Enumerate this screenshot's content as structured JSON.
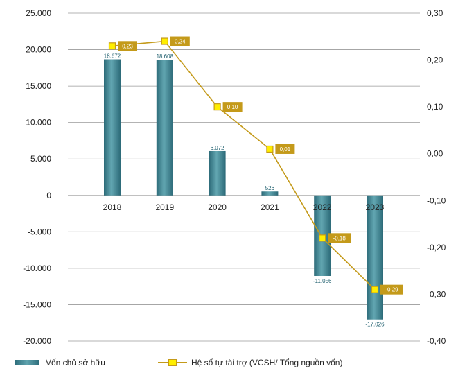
{
  "chart_data": {
    "type": "bar+line",
    "categories": [
      "2018",
      "2019",
      "2020",
      "2021",
      "2022",
      "2023"
    ],
    "series": [
      {
        "name": "Vốn chủ sở hữu",
        "type": "bar",
        "axis": "left",
        "values": [
          18672,
          18608,
          6072,
          526,
          -11056,
          -17026
        ],
        "labels": [
          "18.672",
          "18.608",
          "6.072",
          "526",
          "-11.056",
          "-17.026"
        ],
        "color": "#3b8592"
      },
      {
        "name": "Hệ số tự tài trợ (VCSH/ Tổng nguồn vốn)",
        "type": "line",
        "axis": "right",
        "values": [
          0.23,
          0.24,
          0.1,
          0.01,
          -0.18,
          -0.29
        ],
        "labels": [
          "0,23",
          "0,24",
          "0,10",
          "0,01",
          "-0,18",
          "-0,29"
        ],
        "color": "#c49a1a",
        "marker_color": "#ffee00"
      }
    ],
    "y_left": {
      "lim": [
        -20000,
        25000
      ],
      "ticks": [
        25000,
        20000,
        15000,
        10000,
        5000,
        0,
        -5000,
        -10000,
        -15000,
        -20000
      ],
      "tick_labels": [
        "25.000",
        "20.000",
        "15.000",
        "10.000",
        "5.000",
        "0",
        "-5.000",
        "-10.000",
        "-15.000",
        "-20.000"
      ]
    },
    "y_right": {
      "lim": [
        -0.4,
        0.3
      ],
      "ticks": [
        0.3,
        0.2,
        0.1,
        0.0,
        -0.1,
        -0.2,
        -0.3,
        -0.4
      ],
      "tick_labels": [
        "0,30",
        "0,20",
        "0,10",
        "0,00",
        "-0,10",
        "-0,20",
        "-0,30",
        "-0,40"
      ]
    },
    "grid": true,
    "legend": "bottom"
  }
}
